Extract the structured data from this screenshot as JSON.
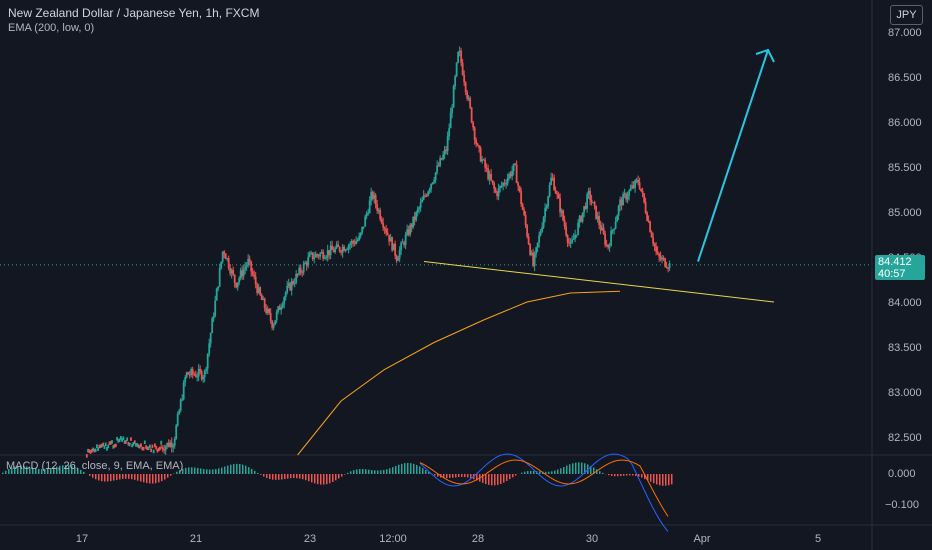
{
  "header": {
    "title": "New Zealand Dollar / Japanese Yen, 1h, FXCM",
    "indicator": "EMA (200, low, 0)",
    "currency_button": "JPY"
  },
  "price_badge": {
    "price": "84.412",
    "countdown": "40:57"
  },
  "macd_pane": {
    "label": "MACD (12, 26, close, 9, EMA, EMA)"
  },
  "colors": {
    "background": "#131722",
    "up": "#26a69a",
    "down": "#ef5350",
    "ema": "#f7a21b",
    "trendline": "#e8d84b",
    "arrow": "#27c7e0",
    "macd_line": "#2962ff",
    "signal_line": "#ff6d00"
  },
  "chart_data": {
    "type": "candlestick",
    "y_axis": {
      "ticks": [
        82.5,
        83.0,
        83.5,
        84.0,
        84.5,
        85.0,
        85.5,
        86.0,
        86.5,
        87.0
      ],
      "tick_labels": [
        "82.500",
        "83.000",
        "83.500",
        "84.000",
        "84.500",
        "85.000",
        "85.500",
        "86.000",
        "86.500",
        "87.000"
      ],
      "ylim": [
        82.3,
        87.3
      ]
    },
    "x_axis": {
      "tick_labels": [
        "17",
        "21",
        "23",
        "12:00",
        "28",
        "30",
        "Apr",
        "5"
      ]
    },
    "price_path": [
      [
        0,
        82.3
      ],
      [
        0.14,
        82.3
      ],
      [
        0.2,
        82.45
      ],
      [
        0.25,
        82.35
      ],
      [
        0.28,
        82.45
      ],
      [
        0.3,
        83.2
      ],
      [
        0.33,
        83.2
      ],
      [
        0.36,
        84.6
      ],
      [
        0.38,
        84.2
      ],
      [
        0.4,
        84.45
      ],
      [
        0.42,
        84.05
      ],
      [
        0.44,
        83.75
      ],
      [
        0.46,
        84.1
      ],
      [
        0.5,
        84.5
      ],
      [
        0.55,
        84.6
      ],
      [
        0.58,
        84.7
      ],
      [
        0.6,
        85.2
      ],
      [
        0.64,
        84.5
      ],
      [
        0.68,
        85.1
      ],
      [
        0.72,
        85.7
      ],
      [
        0.74,
        86.8
      ],
      [
        0.77,
        85.7
      ],
      [
        0.8,
        85.2
      ],
      [
        0.83,
        85.5
      ],
      [
        0.86,
        84.4
      ],
      [
        0.89,
        85.4
      ],
      [
        0.92,
        84.6
      ],
      [
        0.95,
        85.2
      ],
      [
        0.98,
        84.6
      ],
      [
        1.0,
        85.1
      ],
      [
        1.03,
        85.35
      ],
      [
        1.06,
        84.5
      ],
      [
        1.08,
        84.412
      ]
    ],
    "last_price": 84.412,
    "ema_200": [
      [
        0.48,
        82.3
      ],
      [
        0.55,
        82.9
      ],
      [
        0.62,
        83.25
      ],
      [
        0.7,
        83.55
      ],
      [
        0.78,
        83.8
      ],
      [
        0.85,
        84.0
      ],
      [
        0.92,
        84.1
      ],
      [
        1.0,
        84.12
      ]
    ],
    "trendline": [
      [
        0.6,
        84.45
      ],
      [
        1.1,
        84.0
      ]
    ],
    "projection_arrow": [
      [
        1.1,
        84.45
      ],
      [
        1.22,
        86.8
      ]
    ],
    "macd": {
      "y_axis": {
        "tick_labels": [
          "0.000",
          "−0.100"
        ]
      }
    }
  }
}
